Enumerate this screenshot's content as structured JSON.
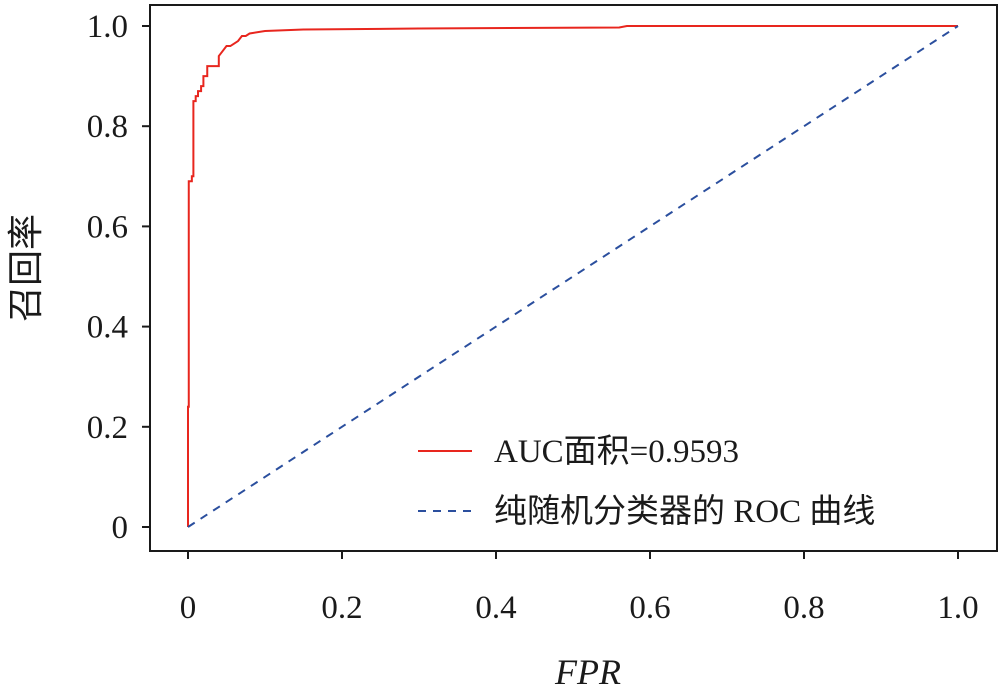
{
  "chart_data": {
    "type": "line",
    "title": "",
    "xlabel": "FPR",
    "ylabel": "召回率",
    "xlim": [
      0,
      1.0
    ],
    "ylim": [
      0,
      1.0
    ],
    "x_ticks": [
      "0",
      "0.2",
      "0.4",
      "0.6",
      "0.8",
      "1.0"
    ],
    "y_ticks": [
      "0",
      "0.2",
      "0.4",
      "0.6",
      "0.8",
      "1.0"
    ],
    "grid": false,
    "legend_position": "bottom-right",
    "series": [
      {
        "name": "AUC面积=0.9593",
        "style": "solid",
        "color": "#e8261e",
        "x": [
          0,
          0,
          0.001,
          0.001,
          0.005,
          0.005,
          0.006,
          0.007,
          0.007,
          0.009,
          0.01,
          0.01,
          0.013,
          0.013,
          0.017,
          0.017,
          0.02,
          0.02,
          0.025,
          0.025,
          0.03,
          0.04,
          0.04,
          0.045,
          0.05,
          0.055,
          0.06,
          0.065,
          0.07,
          0.075,
          0.08,
          0.1,
          0.15,
          0.3,
          0.56,
          0.57,
          1.0
        ],
        "y": [
          0,
          0.24,
          0.24,
          0.69,
          0.69,
          0.7,
          0.7,
          0.7,
          0.85,
          0.85,
          0.85,
          0.86,
          0.86,
          0.87,
          0.87,
          0.88,
          0.88,
          0.9,
          0.9,
          0.92,
          0.92,
          0.92,
          0.94,
          0.95,
          0.96,
          0.96,
          0.965,
          0.97,
          0.98,
          0.98,
          0.985,
          0.99,
          0.993,
          0.995,
          0.997,
          1.0,
          1.0
        ]
      },
      {
        "name": "纯随机分类器的 ROC 曲线",
        "style": "dashed",
        "color": "#2b4f9e",
        "x": [
          0,
          1.0
        ],
        "y": [
          0,
          1.0
        ]
      }
    ]
  }
}
